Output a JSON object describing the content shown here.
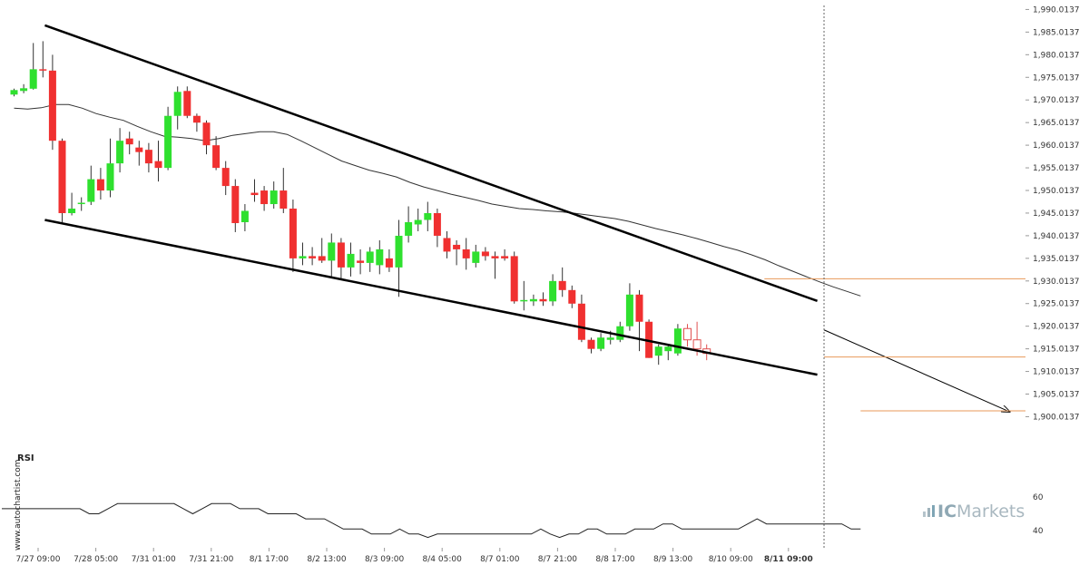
{
  "chart_data": {
    "type": "candlestick",
    "instrument_note": "",
    "y_ticks": [
      "1,990.0137",
      "1,985.0137",
      "1,980.0137",
      "1,975.0137",
      "1,970.0137",
      "1,965.0137",
      "1,960.0137",
      "1,955.0137",
      "1,950.0137",
      "1,945.0137",
      "1,940.0137",
      "1,935.0137",
      "1,930.0137",
      "1,925.0137",
      "1,920.0137",
      "1,915.0137",
      "1,910.0137",
      "1,905.0137",
      "1,900.0137"
    ],
    "y_tick_values": [
      1990.0137,
      1985.0137,
      1980.0137,
      1975.0137,
      1970.0137,
      1965.0137,
      1960.0137,
      1955.0137,
      1950.0137,
      1945.0137,
      1940.0137,
      1935.0137,
      1930.0137,
      1925.0137,
      1920.0137,
      1915.0137,
      1910.0137,
      1905.0137,
      1900.0137
    ],
    "ylim": [
      1897.5,
      1990.5
    ],
    "x_ticks": [
      {
        "label": "7/27 09:00",
        "index": 2.5
      },
      {
        "label": "7/28 05:00",
        "index": 8.5
      },
      {
        "label": "7/31 01:00",
        "index": 14.5
      },
      {
        "label": "7/31 21:00",
        "index": 20.5
      },
      {
        "label": "8/1 17:00",
        "index": 26.5
      },
      {
        "label": "8/2 13:00",
        "index": 32.5
      },
      {
        "label": "8/3 09:00",
        "index": 38.5
      },
      {
        "label": "8/4 05:00",
        "index": 44.5
      },
      {
        "label": "8/7 01:00",
        "index": 50.5
      },
      {
        "label": "8/7 21:00",
        "index": 56.5
      },
      {
        "label": "8/8 17:00",
        "index": 62.5
      },
      {
        "label": "8/9 13:00",
        "index": 68.5
      },
      {
        "label": "8/10 09:00",
        "index": 74.5
      },
      {
        "label": "8/11 09:00",
        "index": 80.5,
        "bold": true
      }
    ],
    "candles": [
      {
        "o": 1971.2,
        "h": 1972.5,
        "l": 1970.8,
        "c": 1972.2
      },
      {
        "o": 1972.0,
        "h": 1973.5,
        "l": 1971.5,
        "c": 1972.6
      },
      {
        "o": 1972.5,
        "h": 1982.6,
        "l": 1972.3,
        "c": 1976.8
      },
      {
        "o": 1976.8,
        "h": 1983.0,
        "l": 1975.0,
        "c": 1976.5
      },
      {
        "o": 1976.5,
        "h": 1980.0,
        "l": 1959.0,
        "c": 1961.0
      },
      {
        "o": 1961.0,
        "h": 1961.5,
        "l": 1943.0,
        "c": 1945.0
      },
      {
        "o": 1945.0,
        "h": 1949.5,
        "l": 1944.5,
        "c": 1946.0
      },
      {
        "o": 1947.0,
        "h": 1948.5,
        "l": 1945.5,
        "c": 1947.3
      },
      {
        "o": 1947.5,
        "h": 1955.5,
        "l": 1946.8,
        "c": 1952.5
      },
      {
        "o": 1952.5,
        "h": 1955.0,
        "l": 1948.0,
        "c": 1950.0
      },
      {
        "o": 1950.0,
        "h": 1961.5,
        "l": 1948.5,
        "c": 1956.0
      },
      {
        "o": 1956.0,
        "h": 1963.8,
        "l": 1954.0,
        "c": 1961.0
      },
      {
        "o": 1961.5,
        "h": 1963.0,
        "l": 1958.0,
        "c": 1960.2
      },
      {
        "o": 1959.5,
        "h": 1961.0,
        "l": 1955.5,
        "c": 1958.5
      },
      {
        "o": 1959.0,
        "h": 1960.5,
        "l": 1954.0,
        "c": 1956.0
      },
      {
        "o": 1956.5,
        "h": 1961.0,
        "l": 1952.0,
        "c": 1955.0
      },
      {
        "o": 1955.0,
        "h": 1968.5,
        "l": 1954.5,
        "c": 1966.5
      },
      {
        "o": 1966.5,
        "h": 1973.0,
        "l": 1963.5,
        "c": 1971.8
      },
      {
        "o": 1972.0,
        "h": 1973.0,
        "l": 1966.0,
        "c": 1966.5
      },
      {
        "o": 1966.5,
        "h": 1967.0,
        "l": 1963.0,
        "c": 1965.0
      },
      {
        "o": 1965.0,
        "h": 1965.5,
        "l": 1958.0,
        "c": 1960.0
      },
      {
        "o": 1960.0,
        "h": 1962.0,
        "l": 1954.5,
        "c": 1955.0
      },
      {
        "o": 1955.0,
        "h": 1956.5,
        "l": 1949.0,
        "c": 1951.0
      },
      {
        "o": 1951.0,
        "h": 1952.5,
        "l": 1940.8,
        "c": 1942.8
      },
      {
        "o": 1943.0,
        "h": 1947.0,
        "l": 1941.0,
        "c": 1945.5
      },
      {
        "o": 1949.5,
        "h": 1952.5,
        "l": 1947.5,
        "c": 1949.0
      },
      {
        "o": 1950.0,
        "h": 1951.0,
        "l": 1945.5,
        "c": 1947.0
      },
      {
        "o": 1947.0,
        "h": 1952.0,
        "l": 1946.0,
        "c": 1950.0
      },
      {
        "o": 1950.0,
        "h": 1955.0,
        "l": 1945.0,
        "c": 1946.0
      },
      {
        "o": 1946.0,
        "h": 1948.0,
        "l": 1932.0,
        "c": 1935.0
      },
      {
        "o": 1935.0,
        "h": 1938.5,
        "l": 1933.5,
        "c": 1935.5
      },
      {
        "o": 1935.5,
        "h": 1937.5,
        "l": 1933.5,
        "c": 1935.0
      },
      {
        "o": 1935.5,
        "h": 1939.5,
        "l": 1934.0,
        "c": 1934.5
      },
      {
        "o": 1934.5,
        "h": 1940.5,
        "l": 1931.0,
        "c": 1938.5
      },
      {
        "o": 1938.5,
        "h": 1939.5,
        "l": 1930.5,
        "c": 1933.0
      },
      {
        "o": 1933.0,
        "h": 1938.5,
        "l": 1931.0,
        "c": 1936.0
      },
      {
        "o": 1934.5,
        "h": 1937.0,
        "l": 1931.5,
        "c": 1934.0
      },
      {
        "o": 1934.0,
        "h": 1937.5,
        "l": 1932.0,
        "c": 1936.5
      },
      {
        "o": 1933.5,
        "h": 1939.0,
        "l": 1931.5,
        "c": 1937.0
      },
      {
        "o": 1935.0,
        "h": 1937.0,
        "l": 1932.0,
        "c": 1933.0
      },
      {
        "o": 1933.0,
        "h": 1943.5,
        "l": 1926.5,
        "c": 1940.0
      },
      {
        "o": 1940.0,
        "h": 1946.5,
        "l": 1938.5,
        "c": 1943.0
      },
      {
        "o": 1942.5,
        "h": 1946.0,
        "l": 1941.0,
        "c": 1943.5
      },
      {
        "o": 1943.5,
        "h": 1947.5,
        "l": 1941.0,
        "c": 1945.0
      },
      {
        "o": 1945.0,
        "h": 1946.0,
        "l": 1937.5,
        "c": 1940.0
      },
      {
        "o": 1939.5,
        "h": 1941.0,
        "l": 1935.0,
        "c": 1936.5
      },
      {
        "o": 1938.0,
        "h": 1939.0,
        "l": 1933.5,
        "c": 1937.0
      },
      {
        "o": 1937.0,
        "h": 1939.5,
        "l": 1932.5,
        "c": 1935.0
      },
      {
        "o": 1934.0,
        "h": 1938.0,
        "l": 1933.0,
        "c": 1936.5
      },
      {
        "o": 1936.5,
        "h": 1937.5,
        "l": 1934.5,
        "c": 1935.5
      },
      {
        "o": 1935.5,
        "h": 1936.5,
        "l": 1930.5,
        "c": 1935.0
      },
      {
        "o": 1935.5,
        "h": 1937.0,
        "l": 1934.5,
        "c": 1935.0
      },
      {
        "o": 1935.5,
        "h": 1936.5,
        "l": 1925.0,
        "c": 1925.5
      },
      {
        "o": 1925.5,
        "h": 1930.0,
        "l": 1923.5,
        "c": 1925.8
      },
      {
        "o": 1925.5,
        "h": 1927.0,
        "l": 1924.5,
        "c": 1926.0
      },
      {
        "o": 1926.0,
        "h": 1927.5,
        "l": 1924.5,
        "c": 1925.5
      },
      {
        "o": 1925.5,
        "h": 1931.5,
        "l": 1924.5,
        "c": 1930.0
      },
      {
        "o": 1930.0,
        "h": 1933.0,
        "l": 1926.5,
        "c": 1928.0
      },
      {
        "o": 1928.0,
        "h": 1929.0,
        "l": 1924.0,
        "c": 1925.0
      },
      {
        "o": 1925.0,
        "h": 1927.0,
        "l": 1916.5,
        "c": 1917.0
      },
      {
        "o": 1917.0,
        "h": 1917.5,
        "l": 1914.0,
        "c": 1915.0
      },
      {
        "o": 1915.0,
        "h": 1918.5,
        "l": 1914.5,
        "c": 1917.5
      },
      {
        "o": 1917.0,
        "h": 1919.0,
        "l": 1916.0,
        "c": 1917.5
      },
      {
        "o": 1917.0,
        "h": 1921.0,
        "l": 1916.5,
        "c": 1920.0
      },
      {
        "o": 1920.0,
        "h": 1929.5,
        "l": 1919.0,
        "c": 1927.0
      },
      {
        "o": 1927.0,
        "h": 1928.0,
        "l": 1914.5,
        "c": 1921.0
      },
      {
        "o": 1921.0,
        "h": 1921.5,
        "l": 1913.0,
        "c": 1913.0
      },
      {
        "o": 1913.5,
        "h": 1916.0,
        "l": 1911.5,
        "c": 1915.5
      },
      {
        "o": 1914.5,
        "h": 1916.0,
        "l": 1912.5,
        "c": 1915.5
      },
      {
        "o": 1914.0,
        "h": 1920.5,
        "l": 1913.5,
        "c": 1919.5
      },
      {
        "o": 1919.5,
        "h": 1920.5,
        "l": 1915.5,
        "c": 1917.0,
        "hollow": true
      },
      {
        "o": 1917.0,
        "h": 1921.0,
        "l": 1913.5,
        "c": 1915.0,
        "hollow": true
      },
      {
        "o": 1915.0,
        "h": 1916.0,
        "l": 1912.5,
        "c": 1914.0,
        "hollow": true
      }
    ],
    "moving_average": [
      1968.2,
      1968.0,
      1968.3,
      1969.0,
      1969.0,
      1968.2,
      1967.0,
      1966.2,
      1965.5,
      1964.2,
      1963.0,
      1962.0,
      1961.8,
      1961.5,
      1961.0,
      1961.5,
      1962.2,
      1962.6,
      1963.0,
      1963.0,
      1962.4,
      1961.0,
      1959.5,
      1958.0,
      1956.5,
      1955.5,
      1954.5,
      1953.8,
      1953.0,
      1951.8,
      1950.8,
      1950.0,
      1949.2,
      1948.5,
      1947.8,
      1947.0,
      1946.5,
      1946.0,
      1945.8,
      1945.5,
      1945.3,
      1945.0,
      1944.6,
      1944.2,
      1943.8,
      1943.2,
      1942.4,
      1941.6,
      1940.9,
      1940.2,
      1939.4,
      1938.5,
      1937.6,
      1936.8,
      1935.8,
      1934.7,
      1933.4,
      1932.2,
      1931.0,
      1929.8,
      1928.7,
      1927.7,
      1926.7
    ],
    "moving_average_start_index": 0,
    "trendlines": [
      {
        "role": "channel-top",
        "from": {
          "i": 3.2,
          "y": 1986.5
        },
        "to": {
          "i": 83.5,
          "y": 1925.6
        },
        "weight": "bold"
      },
      {
        "role": "channel-bottom",
        "from": {
          "i": 3.2,
          "y": 1943.5
        },
        "to": {
          "i": 83.5,
          "y": 1909.3
        },
        "weight": "bold"
      },
      {
        "role": "forecast-arrow",
        "from": {
          "i": 84.2,
          "y": 1919.2
        },
        "to": {
          "i": 103.5,
          "y": 1901.1
        },
        "weight": "thin"
      }
    ],
    "levels": [
      {
        "y": 1930.5,
        "from_i": 78.0,
        "to_i": 112
      },
      {
        "y": 1913.2,
        "from_i": 84.2,
        "to_i": 112
      },
      {
        "y": 1901.3,
        "from_i": 88.0,
        "to_i": 112
      }
    ],
    "vertical_marker_index": 84.2,
    "rsi": {
      "label": "RSI",
      "ticks": [
        "60",
        "40"
      ],
      "tick_values": [
        60,
        40
      ],
      "ylim": [
        32,
        75
      ],
      "values": [
        53,
        53,
        53,
        53,
        53,
        53,
        53,
        53,
        50,
        50,
        53,
        56,
        56,
        56,
        56,
        56,
        56,
        56,
        53,
        50,
        53,
        56,
        56,
        56,
        53,
        53,
        53,
        50,
        50,
        50,
        50,
        47,
        47,
        47,
        44,
        41,
        41,
        41,
        38,
        38,
        38,
        41,
        38,
        38,
        36,
        38,
        38,
        38,
        38,
        38,
        38,
        38,
        38,
        38,
        38,
        38,
        41,
        38,
        36,
        38,
        38,
        41,
        41,
        38,
        38,
        38,
        41,
        41,
        41,
        44,
        44,
        41,
        41,
        41,
        41,
        41,
        41,
        41,
        44,
        47,
        44,
        44,
        44,
        44,
        44,
        44,
        44,
        44,
        44,
        41,
        41
      ],
      "end_index": 88.0
    }
  },
  "watermark": {
    "text": "www.autochartist.com"
  },
  "brand": {
    "ic": "IC",
    "markets": "Markets"
  }
}
